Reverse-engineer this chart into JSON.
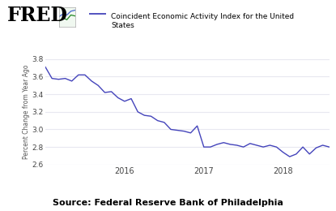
{
  "title": "Coincident Economic Activity Index for the United\nStates",
  "ylabel": "Percent Change from Year Ago",
  "source": "Source: Federal Reserve Bank of Philadelphia",
  "line_color": "#4444bb",
  "background_color": "#ffffff",
  "ylim": [
    2.6,
    3.8
  ],
  "yticks": [
    2.6,
    2.8,
    3.0,
    3.2,
    3.4,
    3.6,
    3.8
  ],
  "y_values": [
    3.71,
    3.58,
    3.57,
    3.58,
    3.55,
    3.62,
    3.62,
    3.55,
    3.5,
    3.42,
    3.43,
    3.36,
    3.32,
    3.35,
    3.2,
    3.16,
    3.15,
    3.1,
    3.08,
    3.0,
    2.99,
    2.98,
    2.96,
    3.04,
    2.8,
    2.8,
    2.83,
    2.85,
    2.83,
    2.82,
    2.8,
    2.84,
    2.82,
    2.8,
    2.82,
    2.8,
    2.74,
    2.69,
    2.72,
    2.8,
    2.72,
    2.79,
    2.82,
    2.8
  ],
  "xtick_positions": [
    12,
    24,
    36
  ],
  "xtick_labels": [
    "2016",
    "2017",
    "2018"
  ],
  "grid_color": "#e8e8f0",
  "fred_fontsize": 17,
  "legend_fontsize": 6.5,
  "ytick_fontsize": 6.5,
  "xtick_fontsize": 7,
  "ylabel_fontsize": 5.5,
  "source_fontsize": 8
}
